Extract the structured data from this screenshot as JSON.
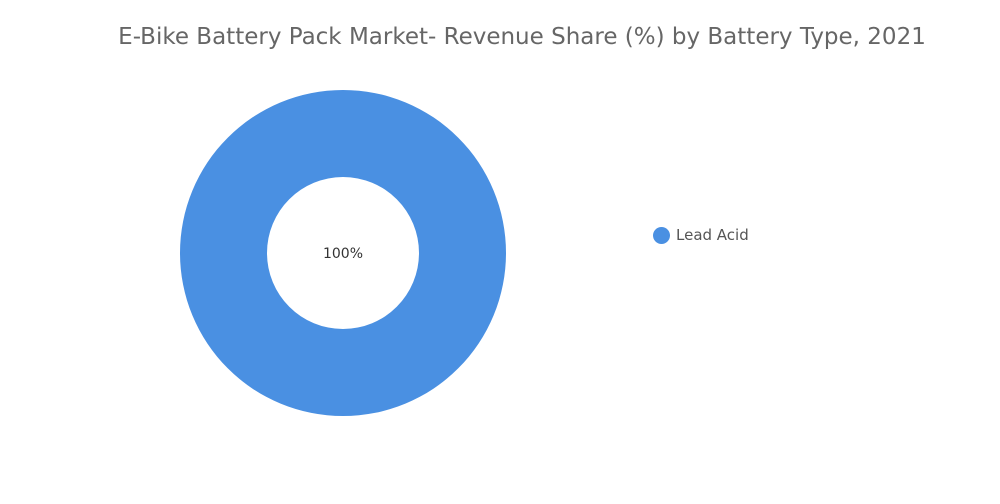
{
  "chart_data": {
    "type": "pie",
    "donut": true,
    "title": "E-Bike Battery Pack Market- Revenue Share (%) by Battery Type, 2021",
    "categories": [
      "Lead Acid"
    ],
    "values": [
      100
    ],
    "data_labels": [
      "100%"
    ],
    "colors": [
      "#4a90e2"
    ],
    "legend": {
      "position": "right",
      "entries": [
        "Lead Acid"
      ]
    }
  }
}
